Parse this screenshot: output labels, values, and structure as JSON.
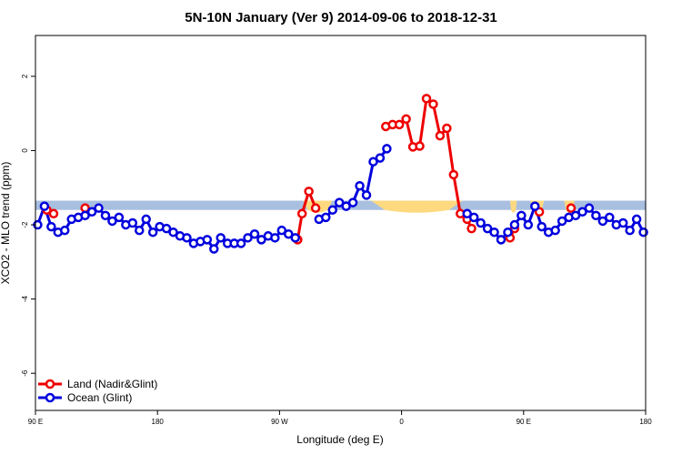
{
  "chart_data": {
    "type": "line",
    "title": "5N-10N January (Ver 9)   2014-09-06 to 2018-12-31",
    "xlabel": "Longitude (deg E)",
    "ylabel": "XCO2 - MLO trend (ppm)",
    "xlim": [
      0,
      360
    ],
    "ylim": [
      -7,
      3.1
    ],
    "x_ticks": [
      {
        "value": 0,
        "label": "90 E"
      },
      {
        "value": 72,
        "label": "180"
      },
      {
        "value": 144,
        "label": "90 W"
      },
      {
        "value": 216,
        "label": "0"
      },
      {
        "value": 288,
        "label": "90 E"
      },
      {
        "value": 360,
        "label": "180"
      }
    ],
    "y_ticks": [
      {
        "value": -6,
        "label": "-6"
      },
      {
        "value": -4,
        "label": "-4"
      },
      {
        "value": -2,
        "label": "-2"
      },
      {
        "value": 0,
        "label": "0"
      },
      {
        "value": 2,
        "label": "2"
      }
    ],
    "grid": false,
    "legend_position": "bottom-left",
    "band": {
      "y_top": -1.35,
      "y_bottom": -1.6,
      "color": "#a8bfe0",
      "land_color": "#ffd980"
    },
    "series": [
      {
        "name": "Land (Nadir&Glint)",
        "color": "#ee0000",
        "segments": [
          [
            [
              6.7,
              -1.6
            ],
            [
              10.7,
              -1.7
            ]
          ],
          [
            [
              29.3,
              -1.55
            ]
          ],
          [
            [
              154.7,
              -2.4
            ],
            [
              157.3,
              -1.7
            ],
            [
              161.3,
              -1.1
            ],
            [
              165.3,
              -1.55
            ]
          ],
          [
            [
              206.7,
              0.65
            ],
            [
              210.7,
              0.7
            ],
            [
              214.7,
              0.7
            ],
            [
              218.7,
              0.85
            ],
            [
              222.7,
              0.1
            ],
            [
              226.7,
              0.12
            ],
            [
              230.7,
              1.4
            ],
            [
              234.7,
              1.25
            ],
            [
              238.7,
              0.4
            ],
            [
              242.7,
              0.6
            ],
            [
              246.7,
              -0.65
            ],
            [
              250.7,
              -1.7
            ],
            [
              254.7,
              -1.85
            ],
            [
              257.3,
              -2.1
            ]
          ],
          [
            [
              280,
              -2.35
            ],
            [
              282.7,
              -2.1
            ]
          ],
          [
            [
              297.3,
              -1.65
            ]
          ],
          [
            [
              316,
              -1.55
            ]
          ]
        ]
      },
      {
        "name": "Ocean (Glint)",
        "color": "#0000dd",
        "points": [
          [
            1.3,
            -2
          ],
          [
            5.3,
            -1.5
          ],
          [
            9.3,
            -2.05
          ],
          [
            13.3,
            -2.2
          ],
          [
            17.3,
            -2.15
          ],
          [
            21.3,
            -1.85
          ],
          [
            25.3,
            -1.8
          ],
          [
            29.3,
            -1.75
          ],
          [
            33.3,
            -1.65
          ],
          [
            37.3,
            -1.55
          ],
          [
            41.3,
            -1.75
          ],
          [
            45.3,
            -1.9
          ],
          [
            49.3,
            -1.8
          ],
          [
            53.3,
            -2
          ],
          [
            57.3,
            -1.95
          ],
          [
            61.3,
            -2.15
          ],
          [
            65.3,
            -1.85
          ],
          [
            69.3,
            -2.2
          ],
          [
            73.3,
            -2.05
          ],
          [
            77.3,
            -2.1
          ],
          [
            81.3,
            -2.2
          ],
          [
            85.3,
            -2.3
          ],
          [
            89.3,
            -2.35
          ],
          [
            93.3,
            -2.5
          ],
          [
            97.3,
            -2.45
          ],
          [
            101.3,
            -2.4
          ],
          [
            105.3,
            -2.65
          ],
          [
            109.3,
            -2.35
          ],
          [
            113.3,
            -2.5
          ],
          [
            117.3,
            -2.5
          ],
          [
            121.3,
            -2.5
          ],
          [
            125.3,
            -2.35
          ],
          [
            129.3,
            -2.25
          ],
          [
            133.3,
            -2.4
          ],
          [
            137.3,
            -2.3
          ],
          [
            141.3,
            -2.35
          ],
          [
            145.3,
            -2.15
          ],
          [
            149.3,
            -2.25
          ],
          [
            153.3,
            -2.35
          ],
          null,
          [
            167.3,
            -1.85
          ],
          [
            171.3,
            -1.8
          ],
          [
            175.3,
            -1.6
          ],
          [
            179.3,
            -1.4
          ],
          [
            183.3,
            -1.5
          ],
          [
            187.3,
            -1.4
          ],
          [
            191.3,
            -0.95
          ],
          [
            195.3,
            -1.2
          ],
          [
            199.3,
            -0.3
          ],
          [
            203.3,
            -0.2
          ],
          [
            207.3,
            0.05
          ],
          null,
          [
            254.7,
            -1.7
          ],
          [
            258.7,
            -1.8
          ],
          [
            262.7,
            -1.95
          ],
          [
            266.7,
            -2.1
          ],
          [
            270.7,
            -2.2
          ],
          [
            274.7,
            -2.4
          ],
          [
            278.7,
            -2.2
          ],
          [
            282.7,
            -2
          ],
          [
            286.7,
            -1.75
          ],
          [
            290.7,
            -2
          ],
          [
            294.7,
            -1.5
          ],
          [
            298.7,
            -2.05
          ],
          [
            302.7,
            -2.2
          ],
          [
            306.7,
            -2.15
          ],
          [
            310.7,
            -1.9
          ],
          [
            314.7,
            -1.8
          ],
          [
            318.7,
            -1.75
          ],
          [
            322.7,
            -1.65
          ],
          [
            326.7,
            -1.55
          ],
          [
            330.7,
            -1.75
          ],
          [
            334.7,
            -1.9
          ],
          [
            338.7,
            -1.8
          ],
          [
            342.7,
            -2
          ],
          [
            346.7,
            -1.95
          ],
          [
            350.7,
            -2.15
          ],
          [
            354.7,
            -1.85
          ],
          [
            358.7,
            -2.2
          ]
        ]
      }
    ]
  }
}
